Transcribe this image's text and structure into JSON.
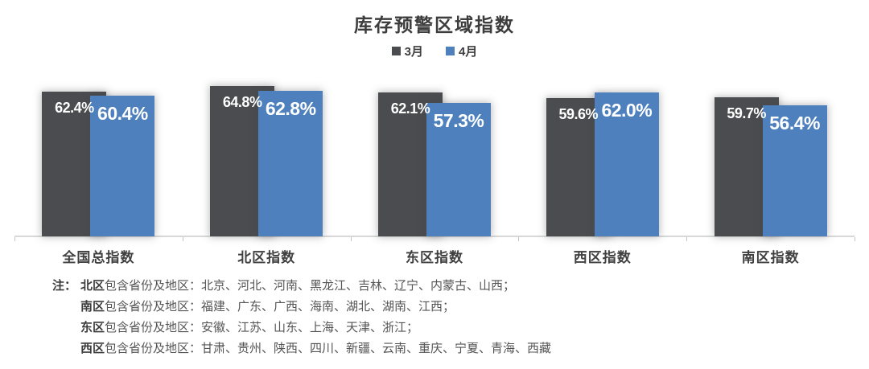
{
  "title": "库存预警区域指数",
  "legend": [
    {
      "label": "3月",
      "color": "#4a4c4f"
    },
    {
      "label": "4月",
      "color": "#4e80bd"
    }
  ],
  "chart_data": {
    "type": "bar",
    "title": "库存预警区域指数",
    "categories": [
      "全国总指数",
      "北区指数",
      "东区指数",
      "西区指数",
      "南区指数"
    ],
    "series": [
      {
        "name": "3月",
        "color": "#4a4c4f",
        "values": [
          62.4,
          64.8,
          62.1,
          59.6,
          59.7
        ],
        "labels": [
          "62.4%",
          "64.8%",
          "62.1%",
          "59.6%",
          "59.7%"
        ]
      },
      {
        "name": "4月",
        "color": "#4e80bd",
        "values": [
          60.4,
          62.8,
          57.3,
          62.0,
          56.4
        ],
        "labels": [
          "60.4%",
          "62.8%",
          "57.3%",
          "62.0%",
          "56.4%"
        ]
      }
    ],
    "value_suffix": "%",
    "ylim": [
      0,
      68
    ],
    "grid": false,
    "legend_position": "top",
    "axis_color": "#d8d8d8",
    "tick_color": "#c4c4c4"
  },
  "notes": {
    "prefix": "注：",
    "lines": [
      {
        "region": "北区",
        "text": "包含省份及地区：北京、河北、河南、黑龙江、吉林、辽宁、内蒙古、山西；"
      },
      {
        "region": "南区",
        "text": "包含省份及地区：福建、广东、广西、海南、湖北、湖南、江西；"
      },
      {
        "region": "东区",
        "text": "包含省份及地区：安徽、江苏、山东、上海、天津、浙江；"
      },
      {
        "region": "西区",
        "text": "包含省份及地区：甘肃、贵州、陕西、四川、新疆、云南、重庆、宁夏、青海、西藏"
      }
    ]
  }
}
